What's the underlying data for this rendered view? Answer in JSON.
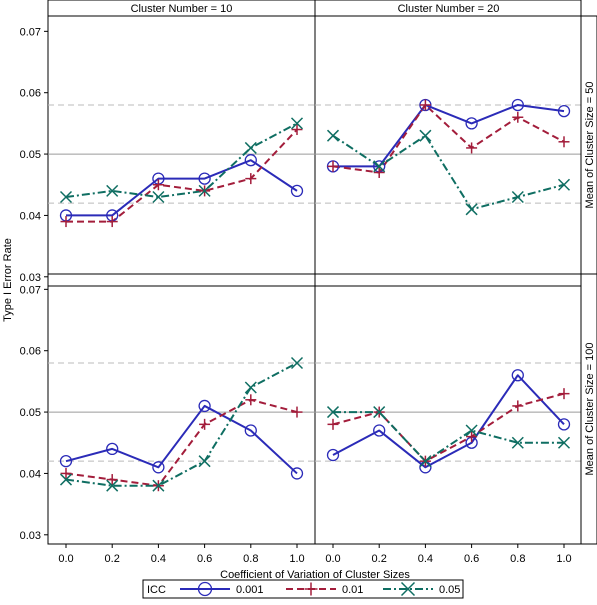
{
  "chart_data": {
    "type": "line",
    "xlabel": "Coefficient of Variation of Cluster Sizes",
    "ylabel": "Type I Error Rate",
    "x_ticks": [
      "0.0",
      "0.2",
      "0.4",
      "0.6",
      "0.8",
      "1.0"
    ],
    "y_ticks": [
      "0.03",
      "0.04",
      "0.05",
      "0.06",
      "0.07"
    ],
    "ylim": [
      0.0285,
      0.0725
    ],
    "grid": false,
    "nominal_line": 0.05,
    "reference_lines": [
      0.042,
      0.058
    ],
    "legend_title": "ICC",
    "legend_position": "bottom",
    "column_labels": [
      "Cluster Number = 10",
      "Cluster Number = 20"
    ],
    "row_labels": [
      "Mean of Cluster Size = 50",
      "Mean of Cluster Size = 100"
    ],
    "x": [
      0.0,
      0.2,
      0.4,
      0.6,
      0.8,
      1.0
    ],
    "series_styles": [
      {
        "name": "0.001",
        "color": "#2b2bb8",
        "marker": "circle",
        "dash": "solid"
      },
      {
        "name": "0.01",
        "color": "#a31d3b",
        "marker": "plus",
        "dash": "dashed"
      },
      {
        "name": "0.05",
        "color": "#0f6e62",
        "marker": "x",
        "dash": "dashdot"
      }
    ],
    "panels": [
      {
        "row": 0,
        "col": 0,
        "series": [
          {
            "name": "0.001",
            "values": [
              0.04,
              0.04,
              0.046,
              0.046,
              0.049,
              0.044
            ]
          },
          {
            "name": "0.01",
            "values": [
              0.039,
              0.039,
              0.045,
              0.044,
              0.046,
              0.054
            ]
          },
          {
            "name": "0.05",
            "values": [
              0.043,
              0.044,
              0.043,
              0.044,
              0.051,
              0.055
            ]
          }
        ]
      },
      {
        "row": 0,
        "col": 1,
        "series": [
          {
            "name": "0.001",
            "values": [
              0.048,
              0.048,
              0.058,
              0.055,
              0.058,
              0.057
            ]
          },
          {
            "name": "0.01",
            "values": [
              0.048,
              0.047,
              0.058,
              0.051,
              0.056,
              0.052
            ]
          },
          {
            "name": "0.05",
            "values": [
              0.053,
              0.048,
              0.053,
              0.041,
              0.043,
              0.045
            ]
          }
        ]
      },
      {
        "row": 1,
        "col": 0,
        "series": [
          {
            "name": "0.001",
            "values": [
              0.042,
              0.044,
              0.041,
              0.051,
              0.047,
              0.04
            ]
          },
          {
            "name": "0.01",
            "values": [
              0.04,
              0.039,
              0.038,
              0.048,
              0.052,
              0.05
            ]
          },
          {
            "name": "0.05",
            "values": [
              0.039,
              0.038,
              0.038,
              0.042,
              0.054,
              0.058
            ]
          }
        ]
      },
      {
        "row": 1,
        "col": 1,
        "series": [
          {
            "name": "0.001",
            "values": [
              0.043,
              0.047,
              0.041,
              0.045,
              0.056,
              0.048
            ]
          },
          {
            "name": "0.01",
            "values": [
              0.048,
              0.05,
              0.042,
              0.046,
              0.051,
              0.053
            ]
          },
          {
            "name": "0.05",
            "values": [
              0.05,
              0.05,
              0.042,
              0.047,
              0.045,
              0.045
            ]
          }
        ]
      }
    ]
  }
}
